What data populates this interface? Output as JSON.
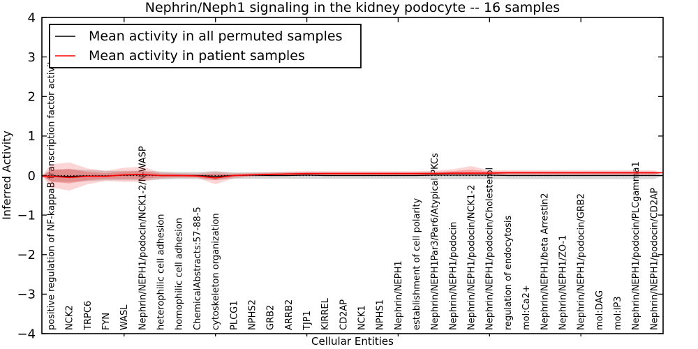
{
  "chart_data": {
    "type": "line",
    "title": "Nephrin/Neph1 signaling in the kidney podocyte -- 16 samples",
    "xlabel": "Cellular Entities",
    "ylabel": "Inferred Activity",
    "ylim": [
      -4,
      4
    ],
    "yticks": [
      4,
      3,
      2,
      1,
      0,
      -1,
      -2,
      -3,
      -4
    ],
    "ytick_labels": [
      "4",
      "3",
      "2",
      "1",
      "0",
      "−1",
      "−2",
      "−3",
      "−4"
    ],
    "grid": false,
    "legend_position": "upper left",
    "zero_line": {
      "style": "dotted",
      "color": "#000000",
      "y": 0
    },
    "categories": [
      "positive regulation of NF-kappaB transcription factor activity",
      "NCK2",
      "TRPC6",
      "FYN",
      "WASL",
      "Nephrin/NEPH1/podocin/NCK1-2/N-WASP",
      "heterophilic cell adhesion",
      "homophilic cell adhesion",
      "ChemicalAbstracts:57-88-5",
      "cytoskeleton organization",
      "PLCG1",
      "NPHS2",
      "GRB2",
      "ARRB2",
      "TJP1",
      "KIRREL",
      "CD2AP",
      "NCK1",
      "NPHS1",
      "Nephrin/NEPH1",
      "establishment of cell polarity",
      "Nephrin/NEPH1Par3/Par6/Atypical PKCs",
      "Nephrin/NEPH1/podocin",
      "Nephrin/NEPH1/podocin/NCK1-2",
      "Nephrin/NEPH1/podocin/Cholesterol",
      "regulation of endocytosis",
      "mol:Ca2+",
      "Nephrin/NEPH1/beta Arrestin2",
      "Nephrin/NEPH1/ZO-1",
      "Nephrin/NEPH1/podocin/GRB2",
      "mol:DAG",
      "mol:IP3",
      "Nephrin/NEPH1/podocin/PLCgamma1",
      "Nephrin/NEPH1/podocin/CD2AP"
    ],
    "series": [
      {
        "name": "Mean activity in all permuted samples",
        "color": "#000000",
        "values": [
          -0.01,
          -0.02,
          -0.01,
          -0.01,
          0.01,
          0.02,
          0.0,
          0.0,
          0.0,
          -0.02,
          0.0,
          0.01,
          0.0,
          0.0,
          0.01,
          0.0,
          0.0,
          0.0,
          0.0,
          0.0,
          0.0,
          0.01,
          0.01,
          0.01,
          0.01,
          0.0,
          0.0,
          0.0,
          0.0,
          0.0,
          0.0,
          0.0,
          0.0,
          0.0
        ]
      },
      {
        "name": "Mean activity in patient samples",
        "color": "#ff0000",
        "values": [
          -0.02,
          -0.05,
          -0.02,
          -0.02,
          0.02,
          0.03,
          0.0,
          0.0,
          -0.01,
          -0.06,
          0.0,
          0.02,
          0.03,
          0.04,
          0.05,
          0.05,
          0.05,
          0.05,
          0.05,
          0.05,
          0.05,
          0.05,
          0.06,
          0.06,
          0.06,
          0.07,
          0.07,
          0.07,
          0.07,
          0.07,
          0.07,
          0.07,
          0.07,
          0.07
        ]
      }
    ],
    "bands": [
      {
        "name": "permuted-std-band",
        "color": "#8a8a8a",
        "opacity": 0.35,
        "upper": [
          0.15,
          0.16,
          0.14,
          0.12,
          0.12,
          0.12,
          0.1,
          0.09,
          0.09,
          0.11,
          0.08,
          0.08,
          0.08,
          0.08,
          0.08,
          0.08,
          0.08,
          0.08,
          0.08,
          0.08,
          0.08,
          0.09,
          0.09,
          0.09,
          0.09,
          0.09,
          0.09,
          0.09,
          0.09,
          0.09,
          0.09,
          0.09,
          0.09,
          0.09
        ],
        "lower": [
          -0.15,
          -0.16,
          -0.14,
          -0.12,
          -0.12,
          -0.12,
          -0.1,
          -0.09,
          -0.09,
          -0.11,
          -0.08,
          -0.08,
          -0.08,
          -0.08,
          -0.08,
          -0.08,
          -0.08,
          -0.08,
          -0.08,
          -0.08,
          -0.08,
          -0.09,
          -0.09,
          -0.09,
          -0.09,
          -0.09,
          -0.09,
          -0.09,
          -0.09,
          -0.09,
          -0.09,
          -0.09,
          -0.09,
          -0.09
        ]
      },
      {
        "name": "patient-std-band-outer",
        "color": "#ee3333",
        "opacity": 0.2,
        "upper": [
          0.28,
          0.33,
          0.18,
          0.12,
          0.2,
          0.22,
          0.08,
          0.06,
          0.05,
          0.1,
          0.06,
          0.07,
          0.09,
          0.1,
          0.11,
          0.11,
          0.11,
          0.11,
          0.11,
          0.11,
          0.11,
          0.12,
          0.16,
          0.24,
          0.13,
          0.13,
          0.13,
          0.13,
          0.13,
          0.13,
          0.13,
          0.13,
          0.13,
          0.13
        ],
        "lower": [
          -0.3,
          -0.38,
          -0.22,
          -0.14,
          -0.16,
          -0.16,
          -0.08,
          -0.06,
          -0.06,
          -0.22,
          -0.07,
          -0.03,
          -0.02,
          -0.01,
          0.0,
          0.0,
          0.0,
          0.0,
          0.0,
          0.0,
          0.0,
          0.0,
          0.0,
          0.0,
          0.0,
          0.01,
          0.01,
          0.01,
          0.01,
          0.01,
          0.01,
          0.01,
          0.01,
          0.01
        ]
      },
      {
        "name": "patient-std-band-inner",
        "color": "#ee3333",
        "opacity": 0.3,
        "upper": [
          0.14,
          0.17,
          0.09,
          0.06,
          0.1,
          0.11,
          0.05,
          0.04,
          0.03,
          0.05,
          0.04,
          0.05,
          0.06,
          0.07,
          0.08,
          0.08,
          0.08,
          0.08,
          0.08,
          0.08,
          0.08,
          0.09,
          0.11,
          0.15,
          0.1,
          0.1,
          0.1,
          0.1,
          0.1,
          0.1,
          0.1,
          0.1,
          0.1,
          0.1
        ],
        "lower": [
          -0.16,
          -0.2,
          -0.12,
          -0.08,
          -0.08,
          -0.08,
          -0.05,
          -0.04,
          -0.04,
          -0.12,
          -0.04,
          -0.01,
          0.0,
          0.01,
          0.02,
          0.02,
          0.02,
          0.02,
          0.02,
          0.02,
          0.02,
          0.02,
          0.02,
          0.02,
          0.03,
          0.03,
          0.03,
          0.03,
          0.03,
          0.03,
          0.03,
          0.03,
          0.03,
          0.03
        ]
      }
    ]
  }
}
